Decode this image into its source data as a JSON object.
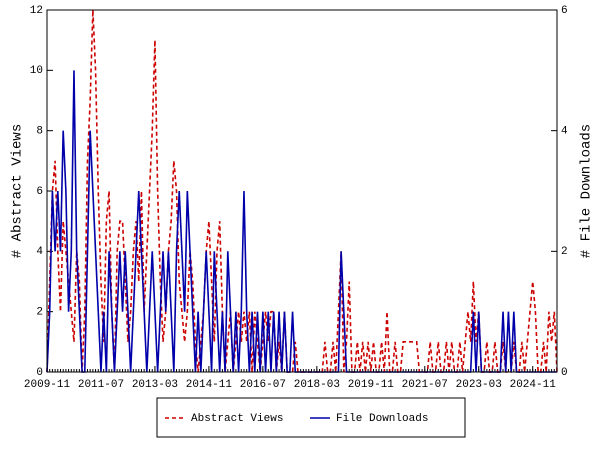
{
  "chart_data": {
    "type": "line",
    "x": [
      "2009-11",
      "2009-12",
      "2010-01",
      "2010-02",
      "2010-03",
      "2010-04",
      "2010-05",
      "2010-06",
      "2010-07",
      "2010-08",
      "2010-09",
      "2010-10",
      "2010-11",
      "2010-12",
      "2011-01",
      "2011-02",
      "2011-03",
      "2011-04",
      "2011-05",
      "2011-06",
      "2011-07",
      "2011-08",
      "2011-09",
      "2011-10",
      "2011-11",
      "2011-12",
      "2012-01",
      "2012-02",
      "2012-03",
      "2012-04",
      "2012-05",
      "2012-06",
      "2012-07",
      "2012-08",
      "2012-09",
      "2012-10",
      "2012-11",
      "2012-12",
      "2013-01",
      "2013-02",
      "2013-03",
      "2013-04",
      "2013-05",
      "2013-06",
      "2013-07",
      "2013-08",
      "2013-09",
      "2013-10",
      "2013-11",
      "2013-12",
      "2014-01",
      "2014-02",
      "2014-03",
      "2014-04",
      "2014-05",
      "2014-06",
      "2014-07",
      "2014-08",
      "2014-09",
      "2014-10",
      "2014-11",
      "2014-12",
      "2015-01",
      "2015-02",
      "2015-03",
      "2015-04",
      "2015-05",
      "2015-06",
      "2015-07",
      "2015-08",
      "2015-09",
      "2015-10",
      "2015-11",
      "2015-12",
      "2016-01",
      "2016-02",
      "2016-03",
      "2016-04",
      "2016-05",
      "2016-06",
      "2016-07",
      "2016-08",
      "2016-09",
      "2016-10",
      "2016-11",
      "2016-12",
      "2017-01",
      "2017-02",
      "2017-03",
      "2017-04",
      "2017-05",
      "2017-06",
      "2017-07",
      "2017-08",
      "2017-09",
      "2017-10",
      "2017-11",
      "2017-12",
      "2018-01",
      "2018-02",
      "2018-03",
      "2018-04",
      "2018-05",
      "2018-06",
      "2018-07",
      "2018-08",
      "2018-09",
      "2018-10",
      "2018-11",
      "2018-12",
      "2019-01",
      "2019-02",
      "2019-03",
      "2019-04",
      "2019-05",
      "2019-06",
      "2019-07",
      "2019-08",
      "2019-09",
      "2019-10",
      "2019-11",
      "2019-12",
      "2020-01",
      "2020-02",
      "2020-03",
      "2020-04",
      "2020-05",
      "2020-06",
      "2020-07",
      "2020-08",
      "2020-09",
      "2020-10",
      "2020-11",
      "2020-12",
      "2021-01",
      "2021-02",
      "2021-03",
      "2021-04",
      "2021-05",
      "2021-06",
      "2021-07",
      "2021-08",
      "2021-09",
      "2021-10",
      "2021-11",
      "2021-12",
      "2022-01",
      "2022-02",
      "2022-03",
      "2022-04",
      "2022-05",
      "2022-06",
      "2022-07",
      "2022-08",
      "2022-09",
      "2022-10",
      "2022-11",
      "2022-12",
      "2023-01",
      "2023-02",
      "2023-03",
      "2023-04",
      "2023-05",
      "2023-06",
      "2023-07",
      "2023-08",
      "2023-09",
      "2023-10",
      "2023-11",
      "2023-12",
      "2024-01",
      "2024-02",
      "2024-03",
      "2024-04",
      "2024-05",
      "2024-06",
      "2024-07",
      "2024-08",
      "2024-09",
      "2024-10",
      "2024-11",
      "2024-12",
      "2025-01",
      "2025-02",
      "2025-03",
      "2025-04",
      "2025-05",
      "2025-06",
      "2025-07",
      "2025-08"
    ],
    "xlim": [
      "2009-11",
      "2025-08"
    ],
    "xticks": [
      "2009-11",
      "2011-07",
      "2013-03",
      "2014-11",
      "2016-07",
      "2018-03",
      "2019-11",
      "2021-07",
      "2023-03",
      "2024-11"
    ],
    "ylabel": "# Abstract Views",
    "ylim": [
      0,
      12
    ],
    "yticks": [
      0,
      2,
      4,
      6,
      8,
      10,
      12
    ],
    "y2label": "# File Downloads",
    "y2lim": [
      0,
      6
    ],
    "y2ticks": [
      0,
      2,
      4,
      6
    ],
    "series": [
      {
        "name": "Abstract Views",
        "color": "#cc0000",
        "dash": true,
        "values": [
          0,
          3,
          6,
          7,
          4,
          2,
          5,
          4,
          3,
          2,
          1,
          4,
          3,
          0,
          2,
          7,
          9,
          12,
          10,
          6,
          3,
          1,
          5,
          6,
          2,
          0,
          4,
          5,
          5,
          3,
          1,
          2,
          4,
          5,
          3,
          6,
          2,
          4,
          6,
          8,
          11,
          6,
          3,
          1,
          2,
          4,
          5,
          7,
          6,
          3,
          2,
          1,
          2,
          4,
          3,
          1,
          0,
          1,
          2,
          4,
          5,
          3,
          1,
          4,
          5,
          2,
          0,
          1,
          2,
          0,
          1,
          2,
          1,
          2,
          1,
          2,
          0,
          2,
          1,
          0,
          1,
          2,
          1,
          2,
          2,
          0,
          1,
          0,
          2,
          0,
          0,
          0,
          1,
          0,
          0,
          0,
          0,
          0,
          0,
          0,
          0,
          0,
          0,
          1,
          0,
          0,
          1,
          0,
          2,
          4,
          0,
          1,
          3,
          0,
          0,
          1,
          0,
          1,
          0,
          1,
          0,
          1,
          0,
          0,
          1,
          0,
          2,
          0,
          0,
          1,
          0,
          0,
          1,
          1,
          1,
          1,
          1,
          1,
          0,
          0,
          0,
          0,
          1,
          0,
          0,
          1,
          0,
          0,
          1,
          0,
          1,
          0,
          0,
          1,
          0,
          1,
          2,
          1,
          3,
          1,
          2,
          0,
          0,
          1,
          0,
          0,
          1,
          0,
          0,
          1,
          0,
          0,
          0,
          1,
          0,
          0,
          1,
          0,
          1,
          2,
          3,
          2,
          0,
          0,
          1,
          0,
          2,
          1,
          2,
          0
        ]
      },
      {
        "name": "File Downloads",
        "color": "#0000aa",
        "dash": false,
        "axis": "y2",
        "values": [
          0,
          1,
          3,
          2,
          3,
          2,
          4,
          3,
          1,
          2,
          5,
          2,
          1,
          0,
          0,
          2,
          4,
          3,
          2,
          1,
          0,
          1,
          0,
          2,
          1,
          0,
          1,
          2,
          1,
          2,
          1,
          0,
          1,
          2,
          3,
          2,
          1,
          0,
          1,
          2,
          1,
          0,
          1,
          2,
          1,
          2,
          1,
          0,
          2,
          3,
          2,
          1,
          3,
          2,
          1,
          0,
          1,
          0,
          1,
          2,
          1,
          0,
          2,
          1,
          0,
          1,
          0,
          2,
          1,
          0,
          1,
          0,
          1,
          3,
          1,
          0,
          1,
          0,
          1,
          0,
          1,
          0,
          1,
          0,
          1,
          0,
          1,
          0,
          1,
          0,
          0,
          1,
          0,
          0,
          0,
          0,
          0,
          0,
          0,
          0,
          0,
          0,
          0,
          0,
          0,
          0,
          0,
          0,
          0,
          2,
          1,
          0,
          0,
          0,
          0,
          0,
          0,
          0,
          0,
          0,
          0,
          0,
          0,
          0,
          0,
          0,
          0,
          0,
          0,
          0,
          0,
          0,
          0,
          0,
          0,
          0,
          0,
          0,
          0,
          0,
          0,
          0,
          0,
          0,
          0,
          0,
          0,
          0,
          0,
          0,
          0,
          0,
          0,
          0,
          0,
          0,
          0,
          0,
          1,
          0,
          1,
          0,
          0,
          0,
          0,
          0,
          0,
          0,
          0,
          1,
          0,
          1,
          0,
          1,
          0,
          0,
          0,
          0,
          0,
          0,
          0,
          0,
          0,
          0,
          0,
          0,
          0,
          0,
          0,
          0
        ]
      }
    ]
  }
}
